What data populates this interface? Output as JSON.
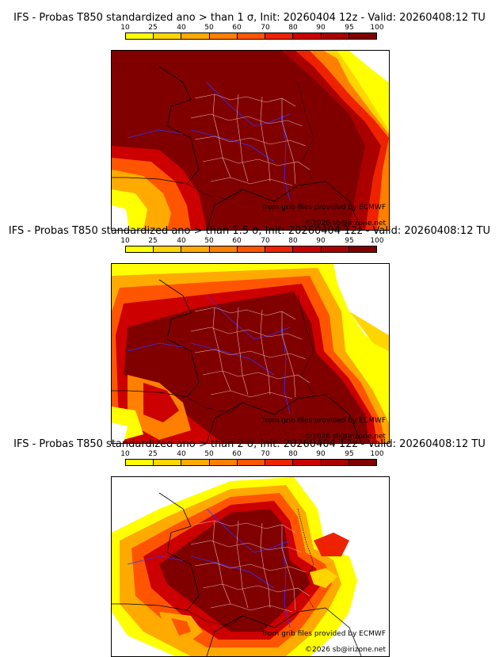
{
  "colors": {
    "scale": [
      "#ffff00",
      "#ffd500",
      "#ffaa00",
      "#ff8000",
      "#ff5500",
      "#ee2200",
      "#cc0000",
      "#aa0000",
      "#800000"
    ],
    "sea": "#ffffff",
    "coast": "#000000",
    "rivers": "#3333ff",
    "departments": "#e0b0b0"
  },
  "colorbar": {
    "labels": [
      "10",
      "25",
      "40",
      "50",
      "60",
      "70",
      "80",
      "90",
      "95",
      "100"
    ]
  },
  "panels": [
    {
      "title": "IFS - Probas T850  standardized ano > than 1 σ, Init: 20260404 12z - Valid: 20260408:12 TU",
      "credit_source": "from grib files provided by ECMWF",
      "credit_copyright": "©2026 sb@irizone.net"
    },
    {
      "title": "IFS - Probas T850  standardized ano > than 1.5 σ, Init: 20260404 12z - Valid: 20260408:12 TU",
      "credit_source": "from grib files provided by ECMWF",
      "credit_copyright": "©2026 sb@irizone.net"
    },
    {
      "title": "IFS - Probas T850  standardized ano > than 2 σ, Init: 20260404 12z - Valid: 20260408:12 TU",
      "credit_source": "from grib files provided by ECMWF",
      "credit_copyright": "©2026 sb@irizone.net"
    }
  ]
}
